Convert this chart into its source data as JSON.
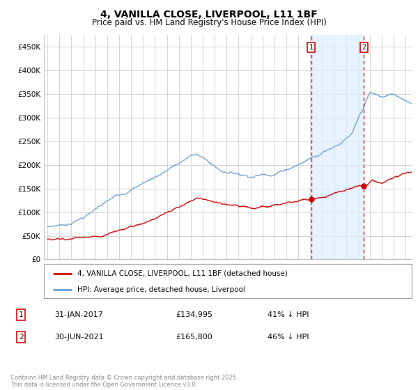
{
  "title": "4, VANILLA CLOSE, LIVERPOOL, L11 1BF",
  "subtitle": "Price paid vs. HM Land Registry's House Price Index (HPI)",
  "title_fontsize": 10,
  "subtitle_fontsize": 8.5,
  "ylim": [
    0,
    475000
  ],
  "yticks": [
    0,
    50000,
    100000,
    150000,
    200000,
    250000,
    300000,
    350000,
    400000,
    450000
  ],
  "ytick_labels": [
    "£0",
    "£50K",
    "£100K",
    "£150K",
    "£200K",
    "£250K",
    "£300K",
    "£350K",
    "£400K",
    "£450K"
  ],
  "background_color": "#ffffff",
  "plot_bg_color": "#ffffff",
  "grid_color": "#cccccc",
  "marker1_x": 2017.08,
  "marker2_x": 2021.5,
  "legend_line1": "4, VANILLA CLOSE, LIVERPOOL, L11 1BF (detached house)",
  "legend_line2": "HPI: Average price, detached house, Liverpool",
  "footer": "Contains HM Land Registry data © Crown copyright and database right 2025.\nThis data is licensed under the Open Government Licence v3.0.",
  "red_line_color": "#cc0000",
  "hpi_line_color": "#6699cc",
  "shade_color": "#ddeeff",
  "xmin": 1994.7,
  "xmax": 2025.5
}
